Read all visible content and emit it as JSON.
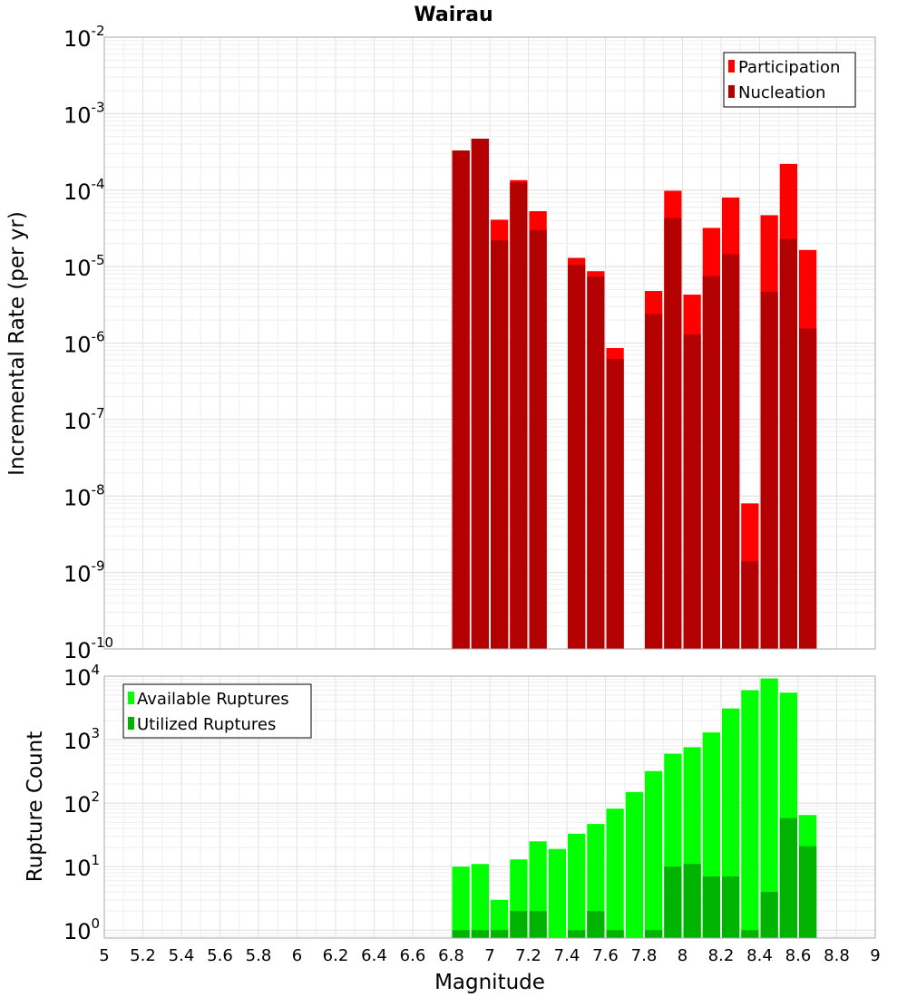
{
  "chart_data": [
    {
      "type": "bar",
      "title": "Wairau",
      "ylabel": "Incremental Rate (per yr)",
      "xlabel": "",
      "yscale": "log",
      "ylim": [
        1e-10,
        0.01
      ],
      "xlim": [
        5,
        9
      ],
      "grid": true,
      "legend": "top-right",
      "x": [
        6.85,
        6.95,
        7.05,
        7.15,
        7.25,
        7.45,
        7.55,
        7.65,
        7.85,
        7.95,
        8.05,
        8.15,
        8.25,
        8.35,
        8.45,
        8.55,
        8.65
      ],
      "series": [
        {
          "name": "Participation",
          "color": "#ff0000",
          "values": [
            0.00033,
            0.00047,
            4.1e-05,
            0.000135,
            5.3e-05,
            1.3e-05,
            8.7e-06,
            8.6e-07,
            4.8e-06,
            9.8e-05,
            4.3e-06,
            3.2e-05,
            8e-05,
            8e-09,
            4.7e-05,
            0.00022,
            1.65e-05
          ]
        },
        {
          "name": "Nucleation",
          "color": "#b30000",
          "values": [
            0.00033,
            0.00047,
            2.2e-05,
            0.000125,
            3e-05,
            1.05e-05,
            7.4e-06,
            6.2e-07,
            2.4e-06,
            4.3e-05,
            1.3e-06,
            7.5e-06,
            1.45e-05,
            1.4e-09,
            4.7e-06,
            2.3e-05,
            1.55e-06
          ]
        }
      ],
      "yticks": [
        {
          "base": "10",
          "exp": "-2"
        },
        {
          "base": "10",
          "exp": "-3"
        },
        {
          "base": "10",
          "exp": "-4"
        },
        {
          "base": "10",
          "exp": "-5"
        },
        {
          "base": "10",
          "exp": "-6"
        },
        {
          "base": "10",
          "exp": "-7"
        },
        {
          "base": "10",
          "exp": "-8"
        },
        {
          "base": "10",
          "exp": "-9"
        },
        {
          "base": "10",
          "exp": "-10"
        }
      ]
    },
    {
      "type": "bar",
      "title": "",
      "ylabel": "Rupture Count",
      "xlabel": "Magnitude",
      "yscale": "log",
      "ylim": [
        0.75,
        10000
      ],
      "xlim": [
        5,
        9
      ],
      "grid": true,
      "legend": "top-left",
      "x": [
        6.85,
        6.95,
        7.05,
        7.15,
        7.25,
        7.35,
        7.45,
        7.55,
        7.65,
        7.75,
        7.85,
        7.95,
        8.05,
        8.15,
        8.25,
        8.35,
        8.45,
        8.55,
        8.65
      ],
      "series": [
        {
          "name": "Available Ruptures",
          "color": "#00ff00",
          "values": [
            10,
            11,
            3,
            13,
            25,
            19,
            33,
            47,
            82,
            150,
            320,
            600,
            760,
            1300,
            3100,
            6000,
            9200,
            5500,
            65
          ]
        },
        {
          "name": "Utilized Ruptures",
          "color": "#00b300",
          "values": [
            1,
            1,
            1,
            2,
            2,
            0,
            1,
            2,
            1,
            0,
            1,
            10,
            11,
            7,
            7,
            1,
            4,
            58,
            21
          ]
        }
      ],
      "yticks": [
        {
          "base": "10",
          "exp": "4"
        },
        {
          "base": "10",
          "exp": "3"
        },
        {
          "base": "10",
          "exp": "2"
        },
        {
          "base": "10",
          "exp": "1"
        },
        {
          "base": "10",
          "exp": "0"
        }
      ],
      "xticks": [
        "5",
        "5.2",
        "5.4",
        "5.6",
        "5.8",
        "6",
        "6.2",
        "6.4",
        "6.6",
        "6.8",
        "7",
        "7.2",
        "7.4",
        "7.6",
        "7.8",
        "8",
        "8.2",
        "8.4",
        "8.6",
        "8.8",
        "9"
      ]
    }
  ]
}
